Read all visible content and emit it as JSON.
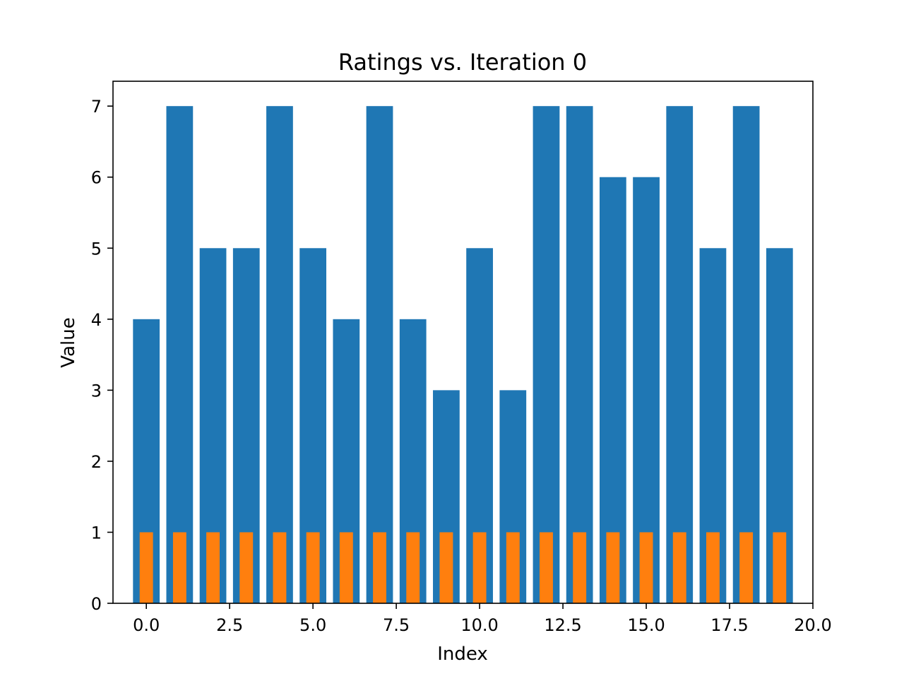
{
  "chart_data": {
    "type": "bar",
    "title": "Ratings vs. Iteration 0",
    "xlabel": "Index",
    "ylabel": "Value",
    "xlim": [
      -1.0,
      20.0
    ],
    "ylim": [
      0,
      7.35
    ],
    "xticks": [
      0.0,
      2.5,
      5.0,
      7.5,
      10.0,
      12.5,
      15.0,
      17.5,
      20.0
    ],
    "xtick_labels": [
      "0.0",
      "2.5",
      "5.0",
      "7.5",
      "10.0",
      "12.5",
      "15.0",
      "17.5",
      "20.0"
    ],
    "yticks": [
      0,
      1,
      2,
      3,
      4,
      5,
      6,
      7
    ],
    "ytick_labels": [
      "0",
      "1",
      "2",
      "3",
      "4",
      "5",
      "6",
      "7"
    ],
    "grid": false,
    "x": [
      0,
      1,
      2,
      3,
      4,
      5,
      6,
      7,
      8,
      9,
      10,
      11,
      12,
      13,
      14,
      15,
      16,
      17,
      18,
      19
    ],
    "series": [
      {
        "color": "#1f77b4",
        "bar_width": 0.8,
        "values": [
          4,
          7,
          5,
          5,
          7,
          5,
          4,
          7,
          4,
          3,
          5,
          3,
          7,
          7,
          6,
          6,
          7,
          5,
          7,
          5
        ]
      },
      {
        "color": "#ff7f0e",
        "bar_width": 0.4,
        "values": [
          1,
          1,
          1,
          1,
          1,
          1,
          1,
          1,
          1,
          1,
          1,
          1,
          1,
          1,
          1,
          1,
          1,
          1,
          1,
          1
        ]
      }
    ]
  }
}
